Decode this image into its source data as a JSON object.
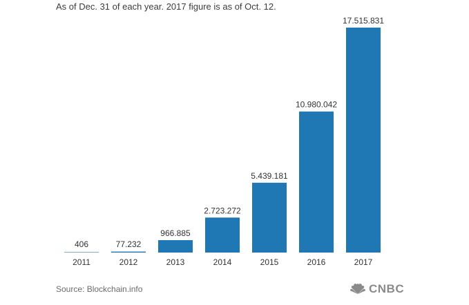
{
  "subtitle": "As of Dec. 31 of each year. 2017 figure is as of Oct. 12.",
  "source": "Source: Blockchain.info",
  "logo": {
    "text": "CNBC",
    "icon": "peacock-icon"
  },
  "colors": {
    "bar": "#1f77b4",
    "text": "#333333",
    "source": "#6b6b6b",
    "logo": "#8a8a8a"
  },
  "chart_data": {
    "type": "bar",
    "categories": [
      "2011",
      "2012",
      "2013",
      "2014",
      "2015",
      "2016",
      "2017"
    ],
    "values": [
      406,
      77232,
      966885,
      2723272,
      5439181,
      10980042,
      17515831
    ],
    "data_labels": [
      "406",
      "77.232",
      "966.885",
      "2.723.272",
      "5.439.181",
      "10.980.042",
      "17.515.831"
    ],
    "title": "",
    "xlabel": "",
    "ylabel": "",
    "ylim": [
      0,
      17515831
    ],
    "grid": false,
    "legend": "none"
  }
}
